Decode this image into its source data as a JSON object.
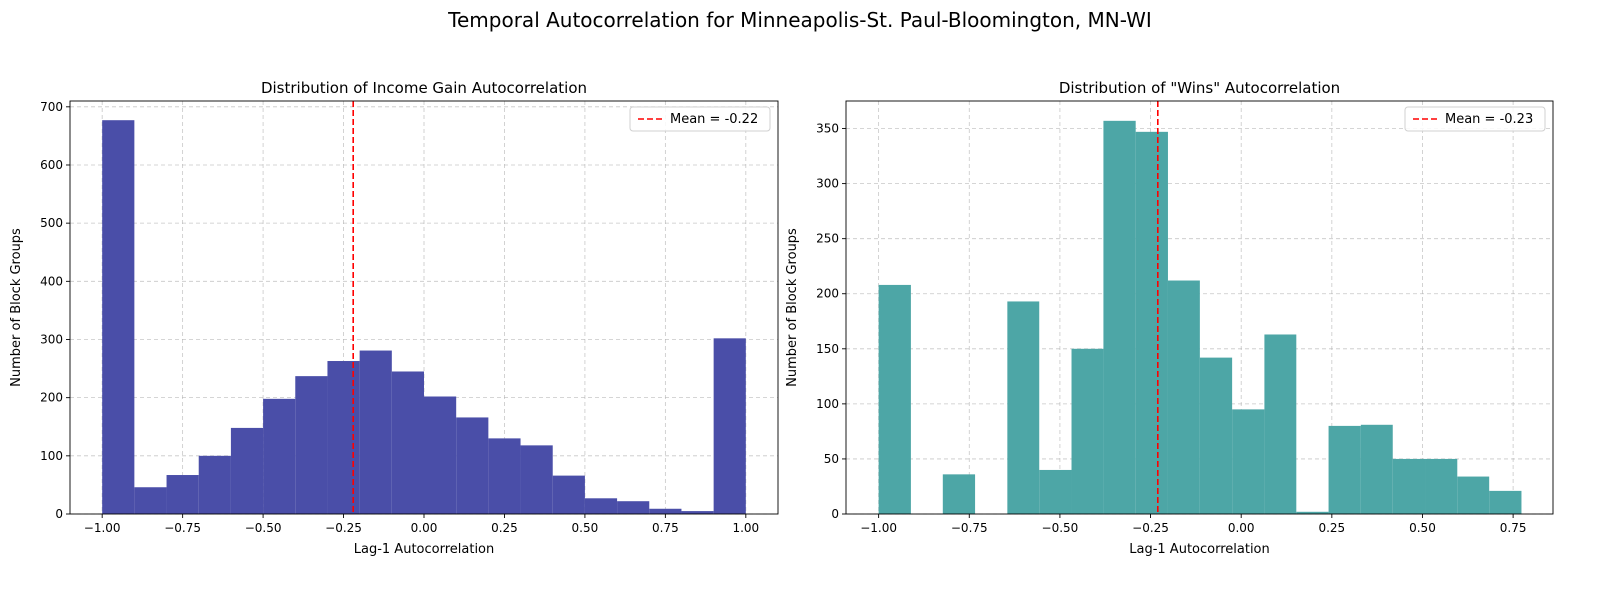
{
  "suptitle": "Temporal Autocorrelation for Minneapolis-St. Paul-Bloomington, MN-WI",
  "chart_data": [
    {
      "type": "bar",
      "title": "Distribution of Income Gain Autocorrelation",
      "xlabel": "Lag-1 Autocorrelation",
      "ylabel": "Number of Block Groups",
      "xlim": [
        -1.1,
        1.1
      ],
      "ylim": [
        0,
        710
      ],
      "xticks": [
        -1.0,
        -0.75,
        -0.5,
        -0.25,
        0.0,
        0.25,
        0.5,
        0.75,
        1.0
      ],
      "xtick_labels": [
        "−1.00",
        "−0.75",
        "−0.50",
        "−0.25",
        "0.00",
        "0.25",
        "0.50",
        "0.75",
        "1.00"
      ],
      "yticks": [
        0,
        100,
        200,
        300,
        400,
        500,
        600,
        700
      ],
      "ytick_labels": [
        "0",
        "100",
        "200",
        "300",
        "400",
        "500",
        "600",
        "700"
      ],
      "grid": true,
      "bar_color": "#4a4ea8",
      "bin_edges": [
        -1.0,
        -0.9,
        -0.8,
        -0.7,
        -0.6,
        -0.5,
        -0.4,
        -0.3,
        -0.2,
        -0.1,
        0.0,
        0.1,
        0.2,
        0.3,
        0.4,
        0.5,
        0.6,
        0.7,
        0.8,
        0.9,
        1.0
      ],
      "values": [
        677,
        46,
        67,
        100,
        148,
        198,
        237,
        263,
        281,
        245,
        202,
        166,
        130,
        118,
        66,
        27,
        22,
        9,
        5,
        302
      ],
      "mean_line": {
        "x": -0.22,
        "label": "Mean = -0.22",
        "color": "#ff0000"
      },
      "legend_position": "top-right"
    },
    {
      "type": "bar",
      "title": "Distribution of \"Wins\" Autocorrelation",
      "xlabel": "Lag-1 Autocorrelation",
      "ylabel": "Number of Block Groups",
      "xlim": [
        -1.09,
        0.86
      ],
      "ylim": [
        0,
        375
      ],
      "xticks": [
        -1.0,
        -0.75,
        -0.5,
        -0.25,
        0.0,
        0.25,
        0.5,
        0.75
      ],
      "xtick_labels": [
        "−1.00",
        "−0.75",
        "−0.50",
        "−0.25",
        "0.00",
        "0.25",
        "0.50",
        "0.75"
      ],
      "yticks": [
        0,
        50,
        100,
        150,
        200,
        250,
        300,
        350
      ],
      "ytick_labels": [
        "0",
        "50",
        "100",
        "150",
        "200",
        "250",
        "300",
        "350"
      ],
      "grid": true,
      "bar_color": "#4da6a6",
      "bin_edges": [
        -1.0,
        -0.911,
        -0.823,
        -0.734,
        -0.645,
        -0.557,
        -0.468,
        -0.38,
        -0.291,
        -0.202,
        -0.114,
        -0.025,
        0.064,
        0.152,
        0.241,
        0.33,
        0.418,
        0.507,
        0.596,
        0.684,
        0.773
      ],
      "values": [
        208,
        0,
        36,
        0,
        193,
        40,
        150,
        357,
        347,
        212,
        142,
        95,
        163,
        2,
        80,
        81,
        50,
        50,
        34,
        21
      ],
      "mean_line": {
        "x": -0.23,
        "label": "Mean = -0.23",
        "color": "#ff0000"
      },
      "legend_position": "top-right"
    }
  ]
}
